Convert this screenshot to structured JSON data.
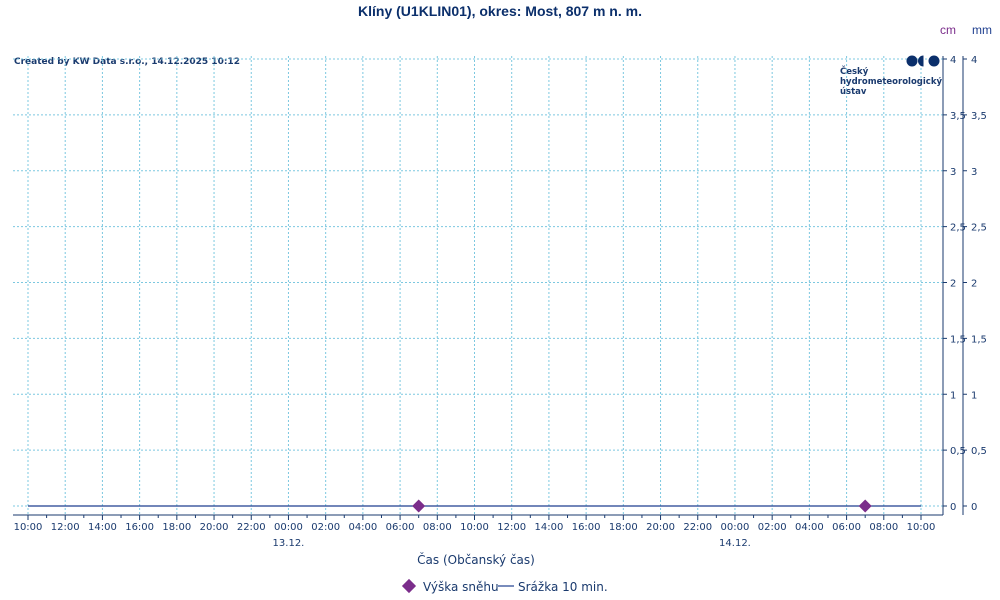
{
  "chart_data": {
    "type": "line",
    "title": "Klíny (U1KLIN01), okres: Most, 807 m n. m.",
    "credit": "Created by KW Data s.r.o., 14.12.2025 10:12",
    "logo": {
      "lines": [
        "Český",
        "hydrometeorologický",
        "ústav"
      ]
    },
    "y_units": {
      "left": "cm",
      "right": "mm"
    },
    "y_tick_labels": [
      "0",
      "0,5",
      "1",
      "1,5",
      "2",
      "2,5",
      "3",
      "3,5",
      "4"
    ],
    "ylim": [
      0,
      4
    ],
    "x_tick_labels": [
      "10:00",
      "12:00",
      "14:00",
      "16:00",
      "18:00",
      "20:00",
      "22:00",
      "00:00",
      "02:00",
      "04:00",
      "06:00",
      "08:00",
      "10:00",
      "12:00",
      "14:00",
      "16:00",
      "18:00",
      "20:00",
      "22:00",
      "00:00",
      "02:00",
      "04:00",
      "06:00",
      "08:00",
      "10:00"
    ],
    "x_date_labels": [
      {
        "label": "13.12.",
        "hours": 14
      },
      {
        "label": "14.12.",
        "hours": 38
      }
    ],
    "xlim_hours": [
      0,
      48
    ],
    "xlabel": "Čas (Občanský čas)",
    "grid": true,
    "legend_position": "bottom-center",
    "series": [
      {
        "name": "Výška sněhu",
        "kind": "marker",
        "marker": "diamond",
        "color": "#7b2d8b",
        "points": [
          {
            "hours": 21,
            "value": 0
          },
          {
            "hours": 45,
            "value": 0
          }
        ]
      },
      {
        "name": "Srážka 10 min.",
        "kind": "line",
        "color": "#1f3f8f",
        "points": [
          {
            "hours": 0,
            "value": 0
          },
          {
            "hours": 48,
            "value": 0
          }
        ]
      }
    ],
    "colors": {
      "text": "#1a3a6e",
      "grid": "#7cc8e0",
      "axis": "#1a3a6e",
      "unit_cm": "#7b2d8b",
      "unit_mm": "#1f3f8f",
      "logo": "#0b2f6b"
    }
  }
}
